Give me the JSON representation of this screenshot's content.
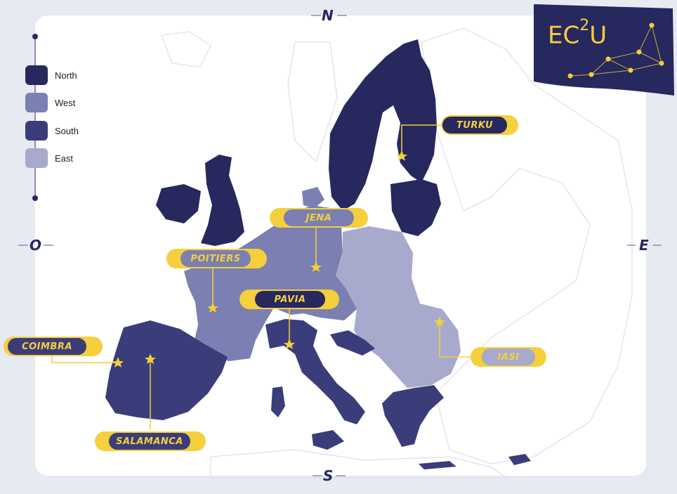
{
  "compass": {
    "north": "N",
    "south": "S",
    "east": "E",
    "west": "O"
  },
  "legend": {
    "items": [
      {
        "label": "North",
        "color": "#26285e"
      },
      {
        "label": "West",
        "color": "#7b7fb1"
      },
      {
        "label": "South",
        "color": "#3b3d7a"
      },
      {
        "label": "East",
        "color": "#a7a9cd"
      }
    ]
  },
  "logo": {
    "text": "EC",
    "sup": "2",
    "tail": "U",
    "flag_color": "#26285e",
    "star_color": "#f5cf3c"
  },
  "cities": [
    {
      "name": "TURKU",
      "region": "North"
    },
    {
      "name": "JENA",
      "region": "West"
    },
    {
      "name": "POITIERS",
      "region": "West"
    },
    {
      "name": "PAVIA",
      "region": "South"
    },
    {
      "name": "COIMBRA",
      "region": "South"
    },
    {
      "name": "SALAMANCA",
      "region": "South"
    },
    {
      "name": "IASI",
      "region": "East"
    }
  ]
}
